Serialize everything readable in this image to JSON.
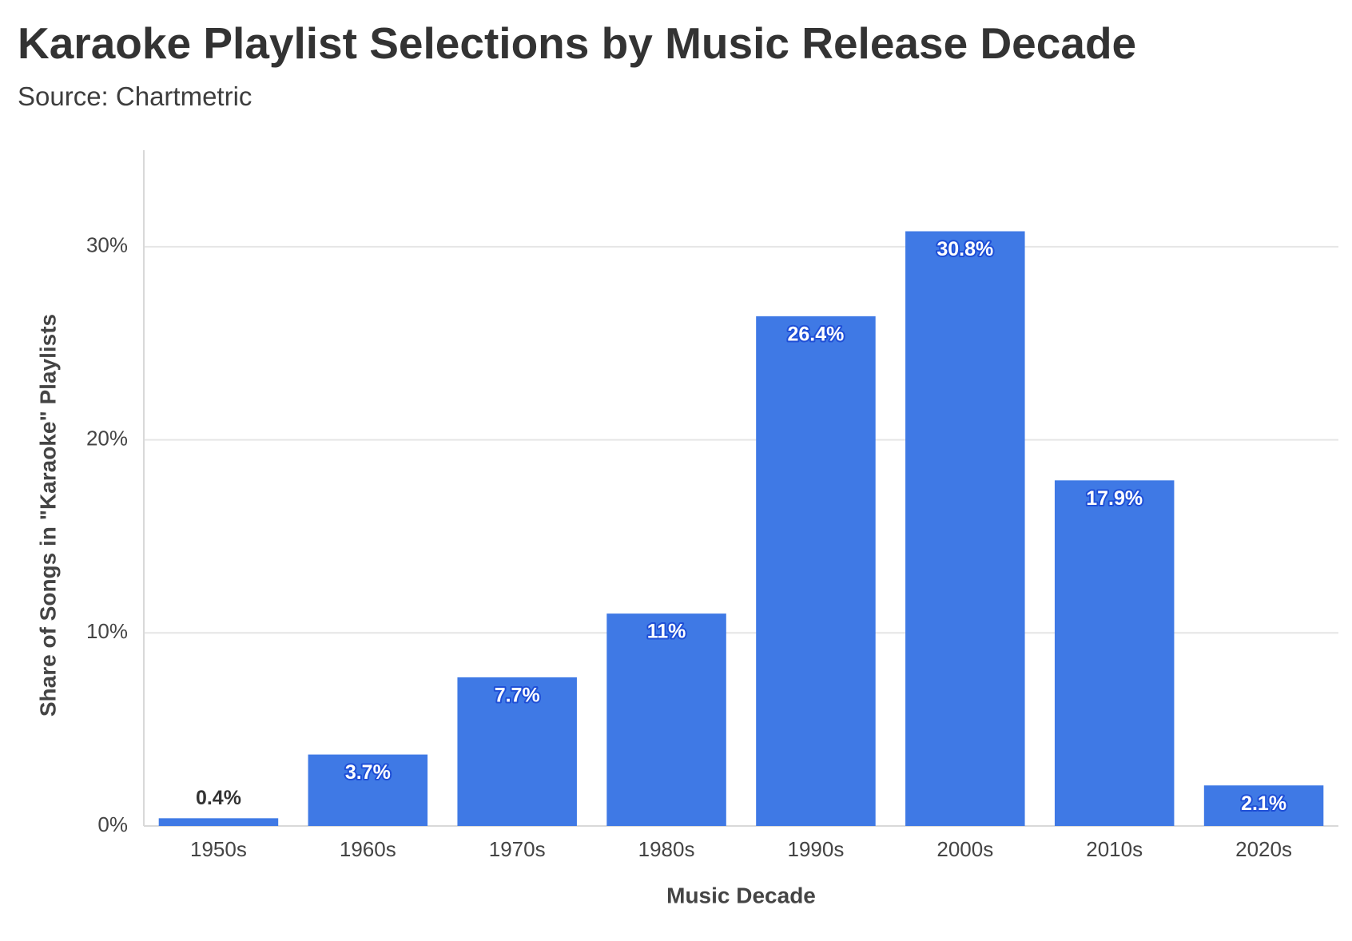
{
  "title": "Karaoke Playlist Selections by Music Release Decade",
  "subtitle": "Source: Chartmetric",
  "colors": {
    "bar": "#3f79e5",
    "grid": "#e6e6e6",
    "axis_line": "#d9d9d9",
    "text": "#333333"
  },
  "chart_data": {
    "type": "bar",
    "categories": [
      "1950s",
      "1960s",
      "1970s",
      "1980s",
      "1990s",
      "2000s",
      "2010s",
      "2020s"
    ],
    "values": [
      0.4,
      3.7,
      7.7,
      11,
      26.4,
      30.8,
      17.9,
      2.1
    ],
    "data_labels": [
      "0.4%",
      "3.7%",
      "7.7%",
      "11%",
      "26.4%",
      "30.8%",
      "17.9%",
      "2.1%"
    ],
    "xlabel": "Music Decade",
    "ylabel": "Share of Songs in \"Karaoke\" Playlists",
    "y_ticks": [
      0,
      10,
      20,
      30
    ],
    "y_tick_labels": [
      "0%",
      "10%",
      "20%",
      "30%"
    ],
    "ylim": [
      0,
      35
    ],
    "grid": true
  }
}
